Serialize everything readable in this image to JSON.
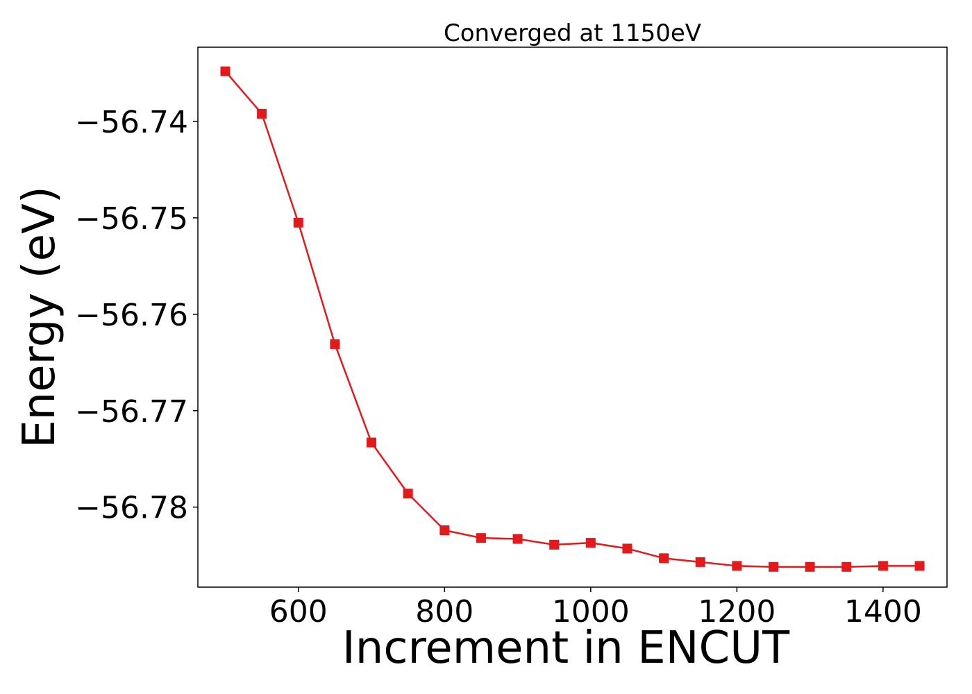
{
  "chart_data": {
    "type": "line",
    "title": "Converged at 1150eV",
    "xlabel": "Increment in ENCUT",
    "ylabel": "Energy (eV)",
    "x": [
      500,
      550,
      600,
      650,
      700,
      750,
      800,
      850,
      900,
      950,
      1000,
      1050,
      1100,
      1150,
      1200,
      1250,
      1300,
      1350,
      1400,
      1450
    ],
    "series": [
      {
        "color": "#e31a1c",
        "marker": "square",
        "values": [
          -56.7348,
          -56.7392,
          -56.7505,
          -56.7631,
          -56.7733,
          -56.7786,
          -56.7824,
          -56.7832,
          -56.7833,
          -56.7839,
          -56.7837,
          -56.7843,
          -56.7853,
          -56.7857,
          -56.7861,
          -56.7862,
          -56.7862,
          -56.7862,
          -56.7861,
          -56.7861
        ]
      }
    ],
    "xlim": [
      462.5,
      1487.5
    ],
    "ylim": [
      -56.7883,
      -56.7323
    ],
    "xticks": [
      600,
      800,
      1000,
      1200,
      1400
    ],
    "xtick_labels": [
      "600",
      "800",
      "1000",
      "1200",
      "1400"
    ],
    "yticks": [
      -56.74,
      -56.75,
      -56.76,
      -56.77,
      -56.78
    ],
    "ytick_labels": [
      "−56.74",
      "−56.75",
      "−56.76",
      "−56.77",
      "−56.78"
    ],
    "grid": false,
    "legend": "none"
  }
}
